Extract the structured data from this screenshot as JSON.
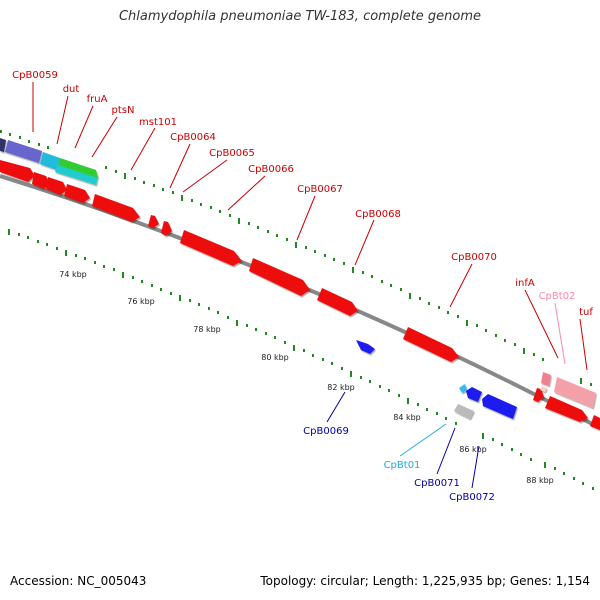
{
  "title": "Chlamydophila pneumoniae TW-183, complete genome",
  "footer": {
    "accession": "Accession: NC_005043",
    "summary": "Topology: circular; Length: 1,225,935 bp; Genes: 1,154"
  },
  "colors": {
    "forward_cds": "#ff1a1a",
    "reverse_cds": "#1a1aee",
    "forward_trna": "#ff9fb0",
    "reverse_trna": "#33bbee",
    "label_forward": "#cc0000",
    "label_reverse": "#0000aa",
    "label_trna_forward": "#ff88aa",
    "label_trna_reverse": "#22aadd",
    "backbone": "#888888",
    "ticks": "#228822",
    "gray_feature": "#bbbbbb",
    "purple_feature": "#6666cc",
    "cyan_feature": "#22cccc",
    "green_feature": "#33cc33"
  },
  "scale_labels": [
    "74 kbp",
    "76 kbp",
    "78 kbp",
    "80 kbp",
    "82 kbp",
    "84 kbp",
    "86 kbp",
    "88 kbp"
  ],
  "forward_labels": [
    "CpB0059",
    "dut",
    "fruA",
    "ptsN",
    "mst101",
    "CpB0064",
    "CpB0065",
    "CpB0066",
    "CpB0067",
    "CpB0068",
    "CpB0070",
    "infA",
    "CpBt02",
    "tuf"
  ],
  "reverse_labels": [
    "CpB0069",
    "CpBt01",
    "CpB0071",
    "CpB0072"
  ]
}
